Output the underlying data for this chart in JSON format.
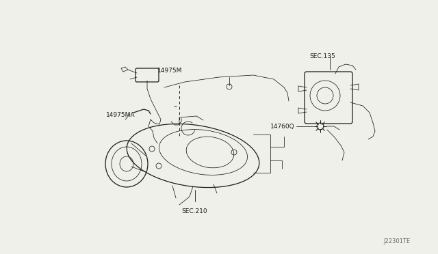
{
  "background_color": "#f0f0eb",
  "fig_width": 6.4,
  "fig_height": 3.72,
  "dpi": 100,
  "labels": {
    "part1": "14975M",
    "part2": "14975MA",
    "part3": "SEC.135",
    "part4": "SEC.210",
    "part5": "14760Q",
    "footer": "J22301TE"
  },
  "line_color": "#1a1a1a",
  "label_color": "#1a1a1a",
  "label_fontsize": 6.5,
  "footer_fontsize": 6.0,
  "lw_main": 0.9,
  "lw_thin": 0.55,
  "lw_thick": 1.2
}
